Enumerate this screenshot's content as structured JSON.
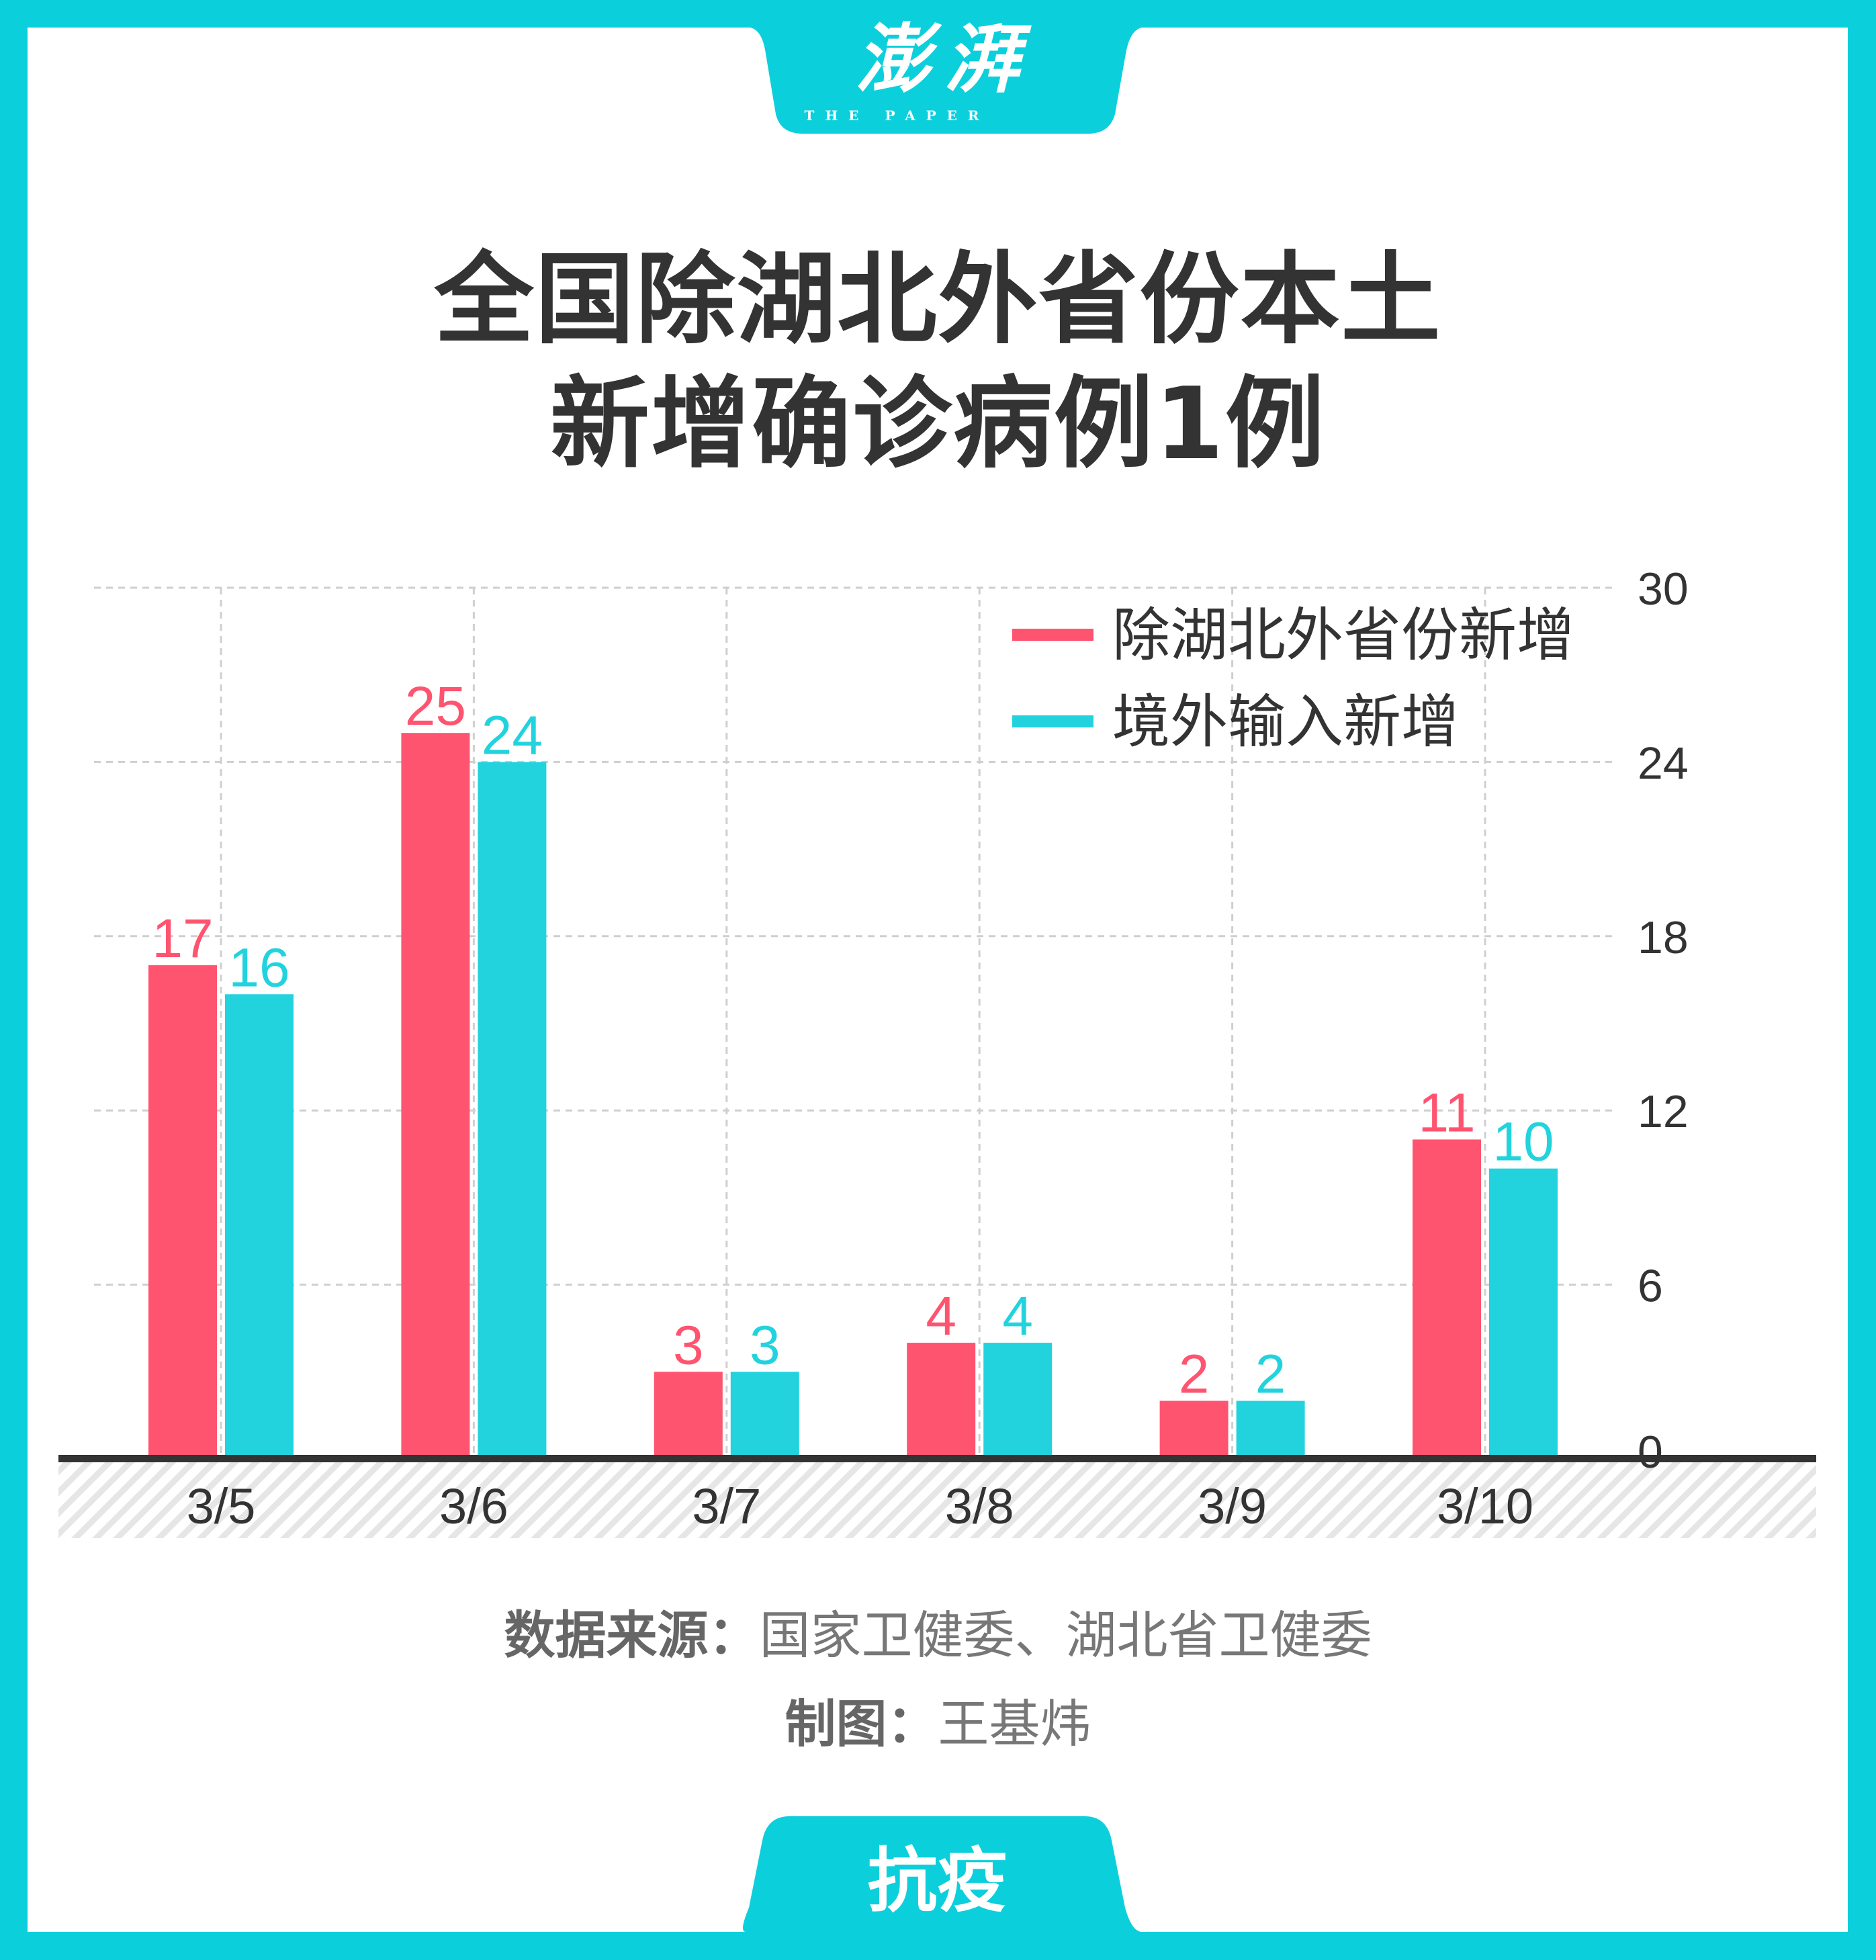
{
  "brand": {
    "logo_cn": "澎湃",
    "logo_en": "THE PAPER",
    "border_color": "#0ccfdc"
  },
  "title_lines": [
    "全国除湖北外省份本土",
    "新增确诊病例1例"
  ],
  "chart_data": {
    "type": "bar",
    "title": "全国除湖北外省份本土新增确诊病例1例",
    "categories": [
      "3/5",
      "3/6",
      "3/7",
      "3/8",
      "3/9",
      "3/10"
    ],
    "series": [
      {
        "name": "除湖北外省份新增",
        "color": "#ff5470",
        "values": [
          17,
          25,
          3,
          4,
          2,
          11
        ]
      },
      {
        "name": "境外输入新增",
        "color": "#22d3de",
        "values": [
          16,
          24,
          3,
          4,
          2,
          10
        ]
      }
    ],
    "ylim": [
      0,
      30
    ],
    "yticks": [
      0,
      6,
      12,
      18,
      24,
      30
    ],
    "ytick_labels": [
      "0",
      "6",
      "12",
      "18",
      "24",
      "30"
    ],
    "y_axis_side": "right",
    "grid": true,
    "legend_position": "top-right",
    "xlabel": "",
    "ylabel": ""
  },
  "footer": {
    "source_label": "数据来源：",
    "source_text": "国家卫健委、湖北省卫健委",
    "author_label": "制图：",
    "author_name": "王基炜",
    "tag": "抗疫"
  }
}
